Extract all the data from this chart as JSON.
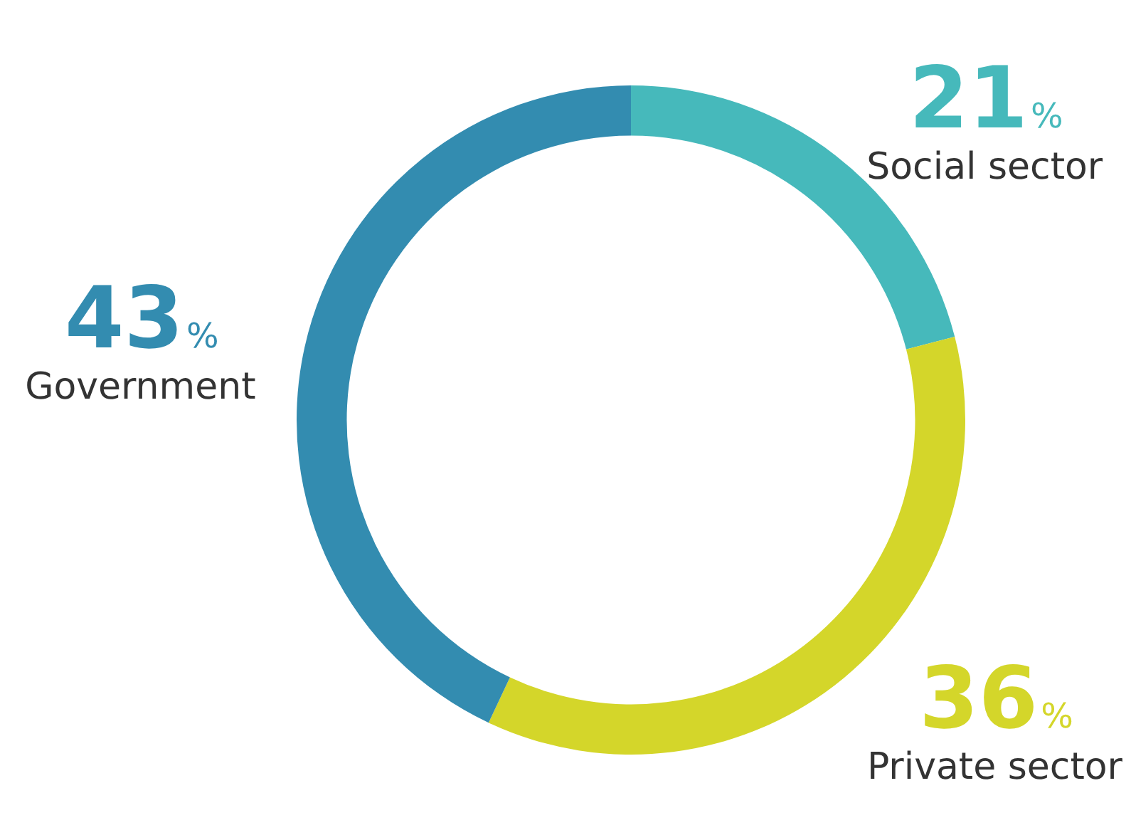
{
  "chart_data": {
    "type": "donut",
    "categories": [
      "Social sector",
      "Private sector",
      "Government"
    ],
    "values": [
      21,
      36,
      43
    ],
    "colors": [
      "#46b9bb",
      "#d4d62a",
      "#338cb0"
    ],
    "value_labels": [
      "21%",
      "36%",
      "43%"
    ],
    "legend": false
  }
}
